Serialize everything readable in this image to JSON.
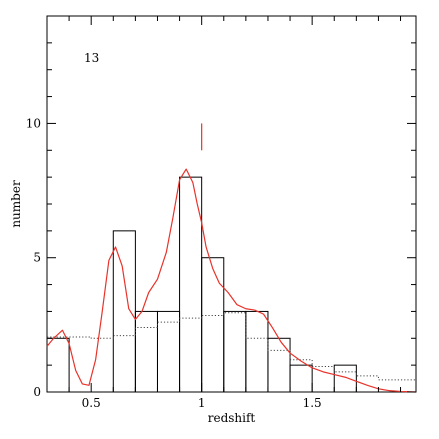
{
  "chart_data": {
    "type": "bar",
    "title": "",
    "xlabel": "redshift",
    "ylabel": "number",
    "xlim": [
      0.3,
      1.97
    ],
    "ylim": [
      0,
      14
    ],
    "x_ticks_major": [
      0.5,
      1,
      1.5
    ],
    "x_tick_labels": [
      "0.5",
      "1",
      "1.5"
    ],
    "y_ticks_major": [
      0,
      5,
      10
    ],
    "y_tick_labels": [
      "0",
      "5",
      "10"
    ],
    "annotation_text": "13",
    "marker_line": {
      "x": 1.0,
      "y_from": 9.0,
      "y_to": 10.0,
      "color": "#e8332b"
    },
    "histogram": {
      "bin_edges": [
        0.3,
        0.4,
        0.5,
        0.6,
        0.7,
        0.8,
        0.9,
        1.0,
        1.1,
        1.2,
        1.3,
        1.4,
        1.5,
        1.6,
        1.7
      ],
      "counts": [
        2,
        0,
        0,
        6,
        3,
        3,
        8,
        5,
        3,
        3,
        2,
        1,
        0,
        1
      ]
    },
    "series": [
      {
        "type": "line",
        "style": "dotted",
        "color": "#444444",
        "x": [
          0.3,
          0.5,
          0.5,
          0.6,
          0.6,
          0.7,
          0.7,
          0.8,
          0.8,
          0.9,
          0.9,
          1.0,
          1.0,
          1.1,
          1.1,
          1.2,
          1.2,
          1.3,
          1.3,
          1.4,
          1.4,
          1.5,
          1.5,
          1.6,
          1.6,
          1.7,
          1.7,
          1.8,
          1.8,
          1.97
        ],
        "y": [
          2.05,
          2.05,
          2.0,
          2.0,
          2.1,
          2.1,
          2.4,
          2.4,
          2.6,
          2.6,
          2.75,
          2.75,
          2.85,
          2.85,
          2.95,
          2.95,
          2.0,
          2.0,
          1.55,
          1.55,
          1.2,
          1.2,
          0.95,
          0.95,
          0.75,
          0.75,
          0.6,
          0.6,
          0.45,
          0.45
        ]
      },
      {
        "type": "line",
        "style": "solid",
        "color": "#e8332b",
        "x": [
          0.3,
          0.33,
          0.37,
          0.4,
          0.43,
          0.46,
          0.49,
          0.52,
          0.55,
          0.58,
          0.61,
          0.64,
          0.67,
          0.7,
          0.73,
          0.76,
          0.8,
          0.84,
          0.87,
          0.9,
          0.93,
          0.96,
          0.98,
          1.0,
          1.02,
          1.05,
          1.08,
          1.12,
          1.16,
          1.2,
          1.24,
          1.28,
          1.32,
          1.36,
          1.4,
          1.45,
          1.5,
          1.55,
          1.6,
          1.65,
          1.7,
          1.75,
          1.8,
          1.85,
          1.9,
          1.97
        ],
        "y": [
          1.7,
          2.0,
          2.3,
          1.8,
          0.8,
          0.3,
          0.25,
          1.2,
          3.0,
          4.9,
          5.4,
          4.7,
          3.1,
          2.7,
          3.0,
          3.7,
          4.2,
          5.2,
          6.5,
          7.9,
          8.3,
          7.8,
          7.0,
          6.3,
          5.4,
          4.6,
          4.05,
          3.7,
          3.25,
          3.1,
          3.05,
          2.9,
          2.4,
          1.85,
          1.45,
          1.15,
          0.9,
          0.75,
          0.65,
          0.55,
          0.4,
          0.25,
          0.12,
          0.05,
          0.02,
          0.0
        ]
      }
    ]
  }
}
